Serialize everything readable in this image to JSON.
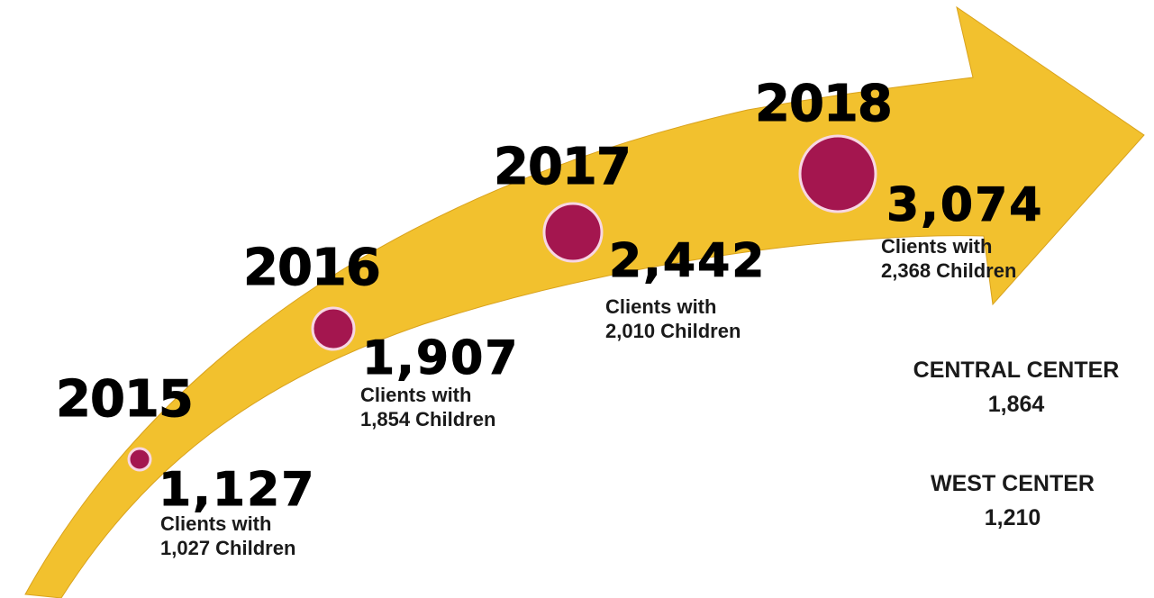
{
  "colors": {
    "arrow": "#F2C12E",
    "arrow_shadow": "#D9A21C",
    "dot": "#A4164F",
    "dot_ring": "#F7D6E3",
    "text": "#000000"
  },
  "milestones": [
    {
      "year": "2015",
      "clients": "1,127",
      "line1": "Clients with",
      "line2": "1,027 Children"
    },
    {
      "year": "2016",
      "clients": "1,907",
      "line1": "Clients with",
      "line2": "1,854 Children"
    },
    {
      "year": "2017",
      "clients": "2,442",
      "line1": "Clients with",
      "line2": "2,010 Children"
    },
    {
      "year": "2018",
      "clients": "3,074",
      "line1": "Clients with",
      "line2": "2,368 Children"
    }
  ],
  "centers": [
    {
      "name": "CENTRAL CENTER",
      "value": "1,864"
    },
    {
      "name": "WEST CENTER",
      "value": "1,210"
    }
  ]
}
